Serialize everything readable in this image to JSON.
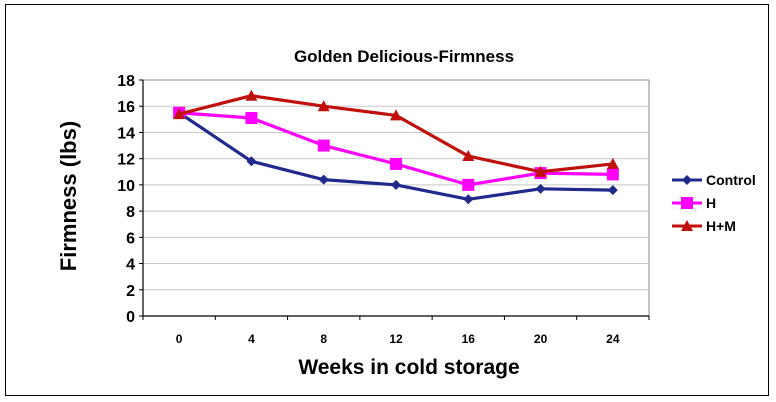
{
  "chart_data": {
    "type": "line",
    "title": "Golden Delicious-Firmness",
    "xlabel": "Weeks in cold storage",
    "ylabel": "Firmness (lbs)",
    "categories": [
      "0",
      "4",
      "8",
      "12",
      "16",
      "20",
      "24"
    ],
    "yticks": [
      "0",
      "2",
      "4",
      "6",
      "8",
      "10",
      "12",
      "14",
      "16",
      "18"
    ],
    "ylim": [
      0,
      18
    ],
    "grid": true,
    "legend_position": "right",
    "series": [
      {
        "name": "Control",
        "color": "#1f2a8c",
        "marker": "diamond",
        "values": [
          15.5,
          11.8,
          10.4,
          10.0,
          8.9,
          9.7,
          9.6
        ]
      },
      {
        "name": "H",
        "color": "#ff00ff",
        "marker": "square",
        "values": [
          15.5,
          15.1,
          13.0,
          11.6,
          10.0,
          10.9,
          10.8
        ]
      },
      {
        "name": "H+M",
        "color": "#c0100c",
        "marker": "triangle",
        "values": [
          15.4,
          16.8,
          16.0,
          15.3,
          12.2,
          11.0,
          11.6
        ]
      }
    ]
  }
}
